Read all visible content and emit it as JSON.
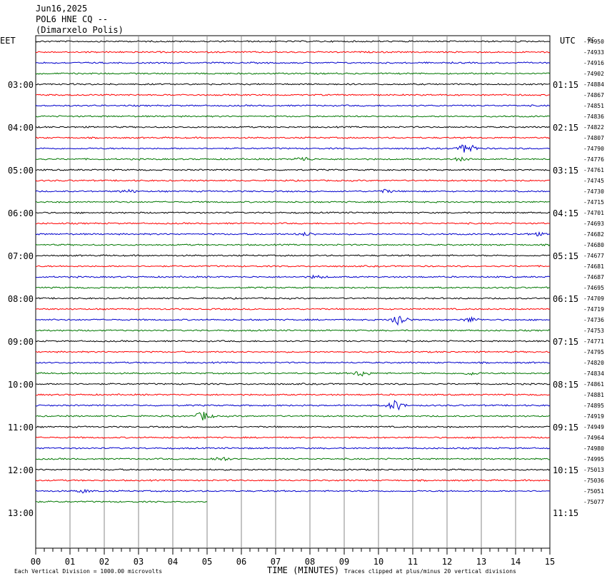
{
  "header": {
    "date": "Jun16,2025",
    "station": "POL6 HNE CQ --",
    "location": "(Dimarxelo Polis)"
  },
  "left_tz": "EET",
  "right_tz": "UTC",
  "dc_label": "DC",
  "footer": {
    "scale_note": "Each Vertical Division = 1000.00 microvolts",
    "xlabel": "TIME (MINUTES)",
    "clip_note": "Traces clipped at plus/minus 20 vertical divisions"
  },
  "colors": [
    "#000000",
    "#ff0000",
    "#0000cc",
    "#007700"
  ],
  "chart_data": {
    "type": "line",
    "xlim": [
      0,
      15
    ],
    "x_ticks": [
      "00",
      "01",
      "02",
      "03",
      "04",
      "05",
      "06",
      "07",
      "08",
      "09",
      "10",
      "11",
      "12",
      "13",
      "14",
      "15"
    ],
    "rows_per_hour": 4,
    "row_count": 44,
    "left_hour_labels": [
      "03:00",
      "04:00",
      "05:00",
      "06:00",
      "07:00",
      "08:00",
      "09:00",
      "10:00",
      "11:00",
      "12:00",
      "13:00"
    ],
    "right_hour_labels": [
      "01:15",
      "02:15",
      "03:15",
      "04:15",
      "05:15",
      "06:15",
      "07:15",
      "08:15",
      "09:15",
      "10:15",
      "11:15"
    ],
    "dc_offsets": [
      "-74950",
      "-74933",
      "-74916",
      "-74902",
      "-74884",
      "-74867",
      "-74851",
      "-74836",
      "-74822",
      "-74807",
      "-74790",
      "-74776",
      "-74761",
      "-74745",
      "-74730",
      "-74715",
      "-74701",
      "-74693",
      "-74682",
      "-74680",
      "-74677",
      "-74681",
      "-74687",
      "-74695",
      "-74709",
      "-74719",
      "-74736",
      "-74753",
      "-74771",
      "-74795",
      "-74820",
      "-74834",
      "-74861",
      "-74881",
      "-74895",
      "-74919",
      "-74949",
      "-74964",
      "-74980",
      "-74995",
      "-75013",
      "-75036",
      "-75051",
      "-75077"
    ],
    "last_row_end_minute": 5.0,
    "events": [
      {
        "row": 10,
        "minute": 12.6,
        "amp": 8
      },
      {
        "row": 11,
        "minute": 7.8,
        "amp": 3
      },
      {
        "row": 11,
        "minute": 12.4,
        "amp": 2
      },
      {
        "row": 14,
        "minute": 2.7,
        "amp": 2
      },
      {
        "row": 14,
        "minute": 10.2,
        "amp": 2
      },
      {
        "row": 18,
        "minute": 7.9,
        "amp": 2
      },
      {
        "row": 18,
        "minute": 14.6,
        "amp": 2
      },
      {
        "row": 22,
        "minute": 8.2,
        "amp": 2
      },
      {
        "row": 26,
        "minute": 10.6,
        "amp": 9
      },
      {
        "row": 26,
        "minute": 12.7,
        "amp": 3
      },
      {
        "row": 31,
        "minute": 9.5,
        "amp": 4
      },
      {
        "row": 31,
        "minute": 12.7,
        "amp": 2
      },
      {
        "row": 34,
        "minute": 10.5,
        "amp": 7
      },
      {
        "row": 35,
        "minute": 4.9,
        "amp": 6
      },
      {
        "row": 39,
        "minute": 5.4,
        "amp": 3
      },
      {
        "row": 42,
        "minute": 1.4,
        "amp": 2
      }
    ]
  }
}
